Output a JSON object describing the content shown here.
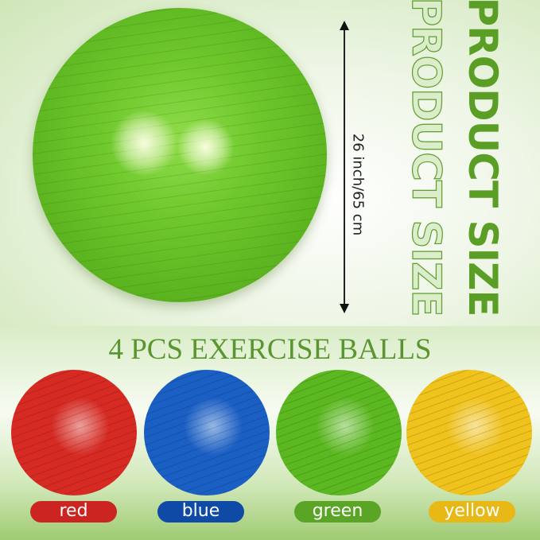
{
  "size": {
    "dimension": "26 inch/65 cm",
    "heading": "PRODUCT SIZE",
    "heading_outline": "PRODUCT SIZE"
  },
  "title": "4 PCS EXERCISE BALLS",
  "balls": [
    {
      "label": "red",
      "color": "#d62a22",
      "label_bg": "#cc2420"
    },
    {
      "label": "blue",
      "color": "#1a5fc4",
      "label_bg": "#0f4aa6"
    },
    {
      "label": "green",
      "color": "#5cb821",
      "label_bg": "#5aa526"
    },
    {
      "label": "yellow",
      "color": "#f0c21c",
      "label_bg": "#e8b816"
    }
  ],
  "colors": {
    "accent": "#5a9e25"
  }
}
